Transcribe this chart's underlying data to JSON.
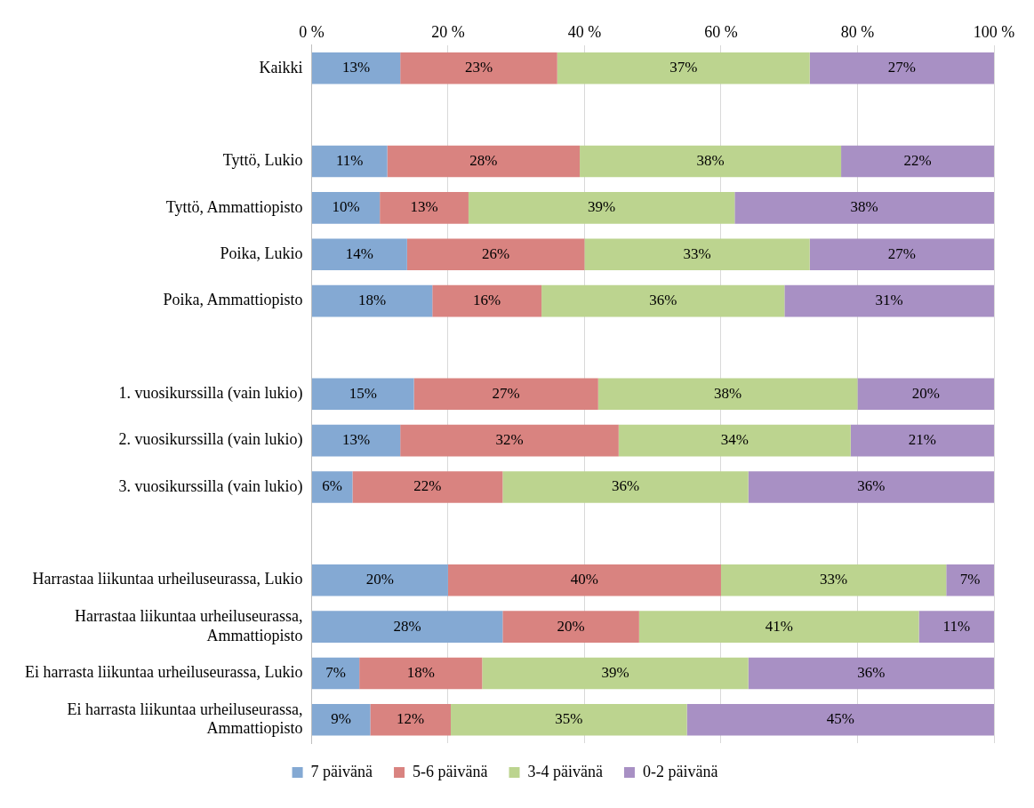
{
  "chart_data": {
    "type": "bar",
    "orientation": "horizontal",
    "stacked": true,
    "categories": [
      "Kaikki",
      null,
      "Tyttö, Lukio",
      "Tyttö, Ammattiopisto",
      "Poika, Lukio",
      "Poika, Ammattiopisto",
      null,
      "1. vuosikurssilla (vain lukio)",
      "2. vuosikurssilla (vain lukio)",
      "3. vuosikurssilla (vain lukio)",
      null,
      "Harrastaa liikuntaa urheiluseurassa, Lukio",
      "Harrastaa liikuntaa urheiluseurassa, Ammattiopisto",
      "Ei harrasta liikuntaa urheiluseurassa, Lukio",
      "Ei harrasta liikuntaa urheiluseurassa, Ammattiopisto"
    ],
    "series": [
      {
        "name": "7 päivänä",
        "color": "#84a9d3",
        "values": [
          13,
          null,
          11.1,
          10,
          14,
          17.7,
          null,
          15,
          13,
          6,
          null,
          20,
          28,
          7,
          8.6
        ],
        "value_labels": [
          "13%",
          null,
          "11%",
          "10%",
          "14%",
          "18%",
          null,
          "15%",
          "13%",
          "6%",
          null,
          "20%",
          "28%",
          "7%",
          "9%"
        ]
      },
      {
        "name": "5-6 päivänä",
        "color": "#d98380",
        "values": [
          23,
          null,
          28.2,
          13,
          26,
          16,
          null,
          27,
          32,
          22,
          null,
          40,
          20,
          18,
          11.8
        ],
        "value_labels": [
          "23%",
          null,
          "28%",
          "13%",
          "26%",
          "16%",
          null,
          "27%",
          "32%",
          "22%",
          null,
          "40%",
          "20%",
          "18%",
          "12%"
        ]
      },
      {
        "name": "3-4 päivänä",
        "color": "#bcd48f",
        "values": [
          37,
          null,
          38.3,
          39,
          33,
          35.6,
          null,
          38,
          34,
          36,
          null,
          33,
          41,
          39,
          34.6
        ],
        "value_labels": [
          "37%",
          null,
          "38%",
          "39%",
          "33%",
          "36%",
          null,
          "38%",
          "34%",
          "36%",
          null,
          "33%",
          "41%",
          "39%",
          "35%"
        ]
      },
      {
        "name": "0-2 päivänä",
        "color": "#a890c4",
        "values": [
          27,
          null,
          22.4,
          38,
          27,
          30.7,
          null,
          20,
          21,
          36,
          null,
          7,
          11,
          36,
          45
        ],
        "value_labels": [
          "27%",
          null,
          "22%",
          "38%",
          "27%",
          "31%",
          null,
          "20%",
          "21%",
          "36%",
          null,
          "7%",
          "11%",
          "36%",
          "45%"
        ]
      }
    ],
    "xlim": [
      0,
      100
    ],
    "xticks": [
      {
        "value": 0,
        "label": "0 %"
      },
      {
        "value": 20,
        "label": "20 %"
      },
      {
        "value": 40,
        "label": "40 %"
      },
      {
        "value": 60,
        "label": "60 %"
      },
      {
        "value": 80,
        "label": "80 %"
      },
      {
        "value": 100,
        "label": "100 %"
      }
    ],
    "grid": "x",
    "legend": "bottom"
  }
}
